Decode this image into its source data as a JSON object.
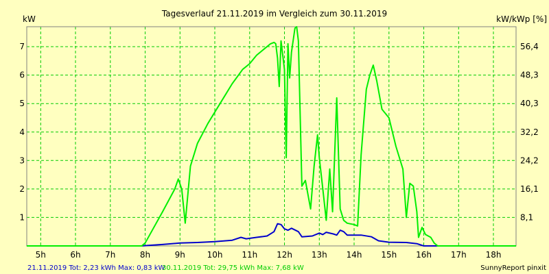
{
  "chart_data": {
    "type": "line",
    "title": "Tagesverlauf 21.11.2019 im Vergleich zum 30.11.2019",
    "ylabel_left": "kW",
    "ylabel_right": "kW/kWp [%]",
    "ylim": [
      0,
      7.7
    ],
    "y_ticks_left": [
      1,
      2,
      3,
      4,
      5,
      6,
      7
    ],
    "y_ticks_right": [
      "8,1",
      "16,1",
      "24,2",
      "32,2",
      "40,3",
      "48,3",
      "56,4"
    ],
    "xlim": [
      4.6,
      18.65
    ],
    "x_ticks": [
      5,
      6,
      7,
      8,
      9,
      10,
      11,
      12,
      13,
      14,
      15,
      16,
      17,
      18
    ],
    "x_tick_labels": [
      "5h",
      "6h",
      "7h",
      "8h",
      "9h",
      "10h",
      "11h",
      "12h",
      "13h",
      "14h",
      "15h",
      "16h",
      "17h",
      "18h"
    ],
    "grid": true,
    "colors": {
      "background": "#FFFFC0",
      "grid": "#00CC00",
      "series_a": "#0000CC",
      "series_b": "#00EE00"
    },
    "series": [
      {
        "name": "21.11.2019",
        "color": "#0000CC",
        "points": [
          [
            4.6,
            0
          ],
          [
            7.9,
            0
          ],
          [
            8.1,
            0.02
          ],
          [
            8.5,
            0.05
          ],
          [
            9.0,
            0.1
          ],
          [
            9.5,
            0.12
          ],
          [
            10.0,
            0.15
          ],
          [
            10.5,
            0.2
          ],
          [
            10.75,
            0.3
          ],
          [
            10.9,
            0.25
          ],
          [
            11.2,
            0.3
          ],
          [
            11.5,
            0.35
          ],
          [
            11.7,
            0.5
          ],
          [
            11.8,
            0.78
          ],
          [
            11.9,
            0.75
          ],
          [
            12.0,
            0.6
          ],
          [
            12.1,
            0.55
          ],
          [
            12.2,
            0.62
          ],
          [
            12.4,
            0.5
          ],
          [
            12.5,
            0.32
          ],
          [
            12.8,
            0.35
          ],
          [
            13.0,
            0.45
          ],
          [
            13.1,
            0.4
          ],
          [
            13.2,
            0.48
          ],
          [
            13.4,
            0.42
          ],
          [
            13.5,
            0.38
          ],
          [
            13.6,
            0.55
          ],
          [
            13.7,
            0.5
          ],
          [
            13.8,
            0.38
          ],
          [
            14.2,
            0.38
          ],
          [
            14.5,
            0.32
          ],
          [
            14.7,
            0.18
          ],
          [
            15.0,
            0.13
          ],
          [
            15.5,
            0.12
          ],
          [
            15.8,
            0.08
          ],
          [
            16.0,
            0
          ],
          [
            18.65,
            0
          ]
        ]
      },
      {
        "name": "30.11.2019",
        "color": "#00EE00",
        "points": [
          [
            4.6,
            0
          ],
          [
            7.9,
            0
          ],
          [
            8.0,
            0.1
          ],
          [
            8.5,
            1.2
          ],
          [
            8.85,
            2.0
          ],
          [
            8.95,
            2.35
          ],
          [
            9.05,
            2.0
          ],
          [
            9.15,
            0.8
          ],
          [
            9.3,
            2.8
          ],
          [
            9.5,
            3.6
          ],
          [
            9.8,
            4.3
          ],
          [
            10.0,
            4.7
          ],
          [
            10.3,
            5.3
          ],
          [
            10.5,
            5.7
          ],
          [
            10.8,
            6.2
          ],
          [
            11.0,
            6.4
          ],
          [
            11.2,
            6.7
          ],
          [
            11.4,
            6.9
          ],
          [
            11.6,
            7.1
          ],
          [
            11.7,
            7.15
          ],
          [
            11.75,
            7.1
          ],
          [
            11.8,
            6.6
          ],
          [
            11.85,
            5.6
          ],
          [
            11.9,
            7.2
          ],
          [
            12.0,
            6.2
          ],
          [
            12.05,
            3.1
          ],
          [
            12.1,
            7.1
          ],
          [
            12.15,
            5.9
          ],
          [
            12.2,
            6.8
          ],
          [
            12.3,
            7.65
          ],
          [
            12.35,
            7.7
          ],
          [
            12.4,
            7.2
          ],
          [
            12.5,
            2.1
          ],
          [
            12.6,
            2.3
          ],
          [
            12.75,
            1.3
          ],
          [
            12.85,
            2.8
          ],
          [
            12.95,
            3.9
          ],
          [
            13.0,
            3.1
          ],
          [
            13.1,
            2.0
          ],
          [
            13.2,
            0.9
          ],
          [
            13.3,
            2.7
          ],
          [
            13.38,
            1.2
          ],
          [
            13.5,
            5.2
          ],
          [
            13.6,
            1.3
          ],
          [
            13.7,
            0.9
          ],
          [
            13.8,
            0.8
          ],
          [
            14.0,
            0.75
          ],
          [
            14.1,
            0.7
          ],
          [
            14.2,
            3.2
          ],
          [
            14.35,
            5.5
          ],
          [
            14.45,
            6.0
          ],
          [
            14.55,
            6.35
          ],
          [
            14.65,
            5.8
          ],
          [
            14.8,
            4.8
          ],
          [
            15.0,
            4.5
          ],
          [
            15.2,
            3.5
          ],
          [
            15.4,
            2.7
          ],
          [
            15.5,
            1.0
          ],
          [
            15.6,
            2.2
          ],
          [
            15.7,
            2.1
          ],
          [
            15.8,
            1.2
          ],
          [
            15.85,
            0.3
          ],
          [
            15.95,
            0.65
          ],
          [
            16.05,
            0.4
          ],
          [
            16.2,
            0.3
          ],
          [
            16.3,
            0.1
          ],
          [
            16.4,
            0
          ],
          [
            18.65,
            0
          ]
        ]
      }
    ]
  },
  "footer": {
    "left": "21.11.2019 Tot: 2,23 kWh Max: 0,83 kW",
    "middle": "30.11.2019 Tot: 29,75 kWh Max: 7,68 kW",
    "right": "SunnyReport pinxit"
  }
}
